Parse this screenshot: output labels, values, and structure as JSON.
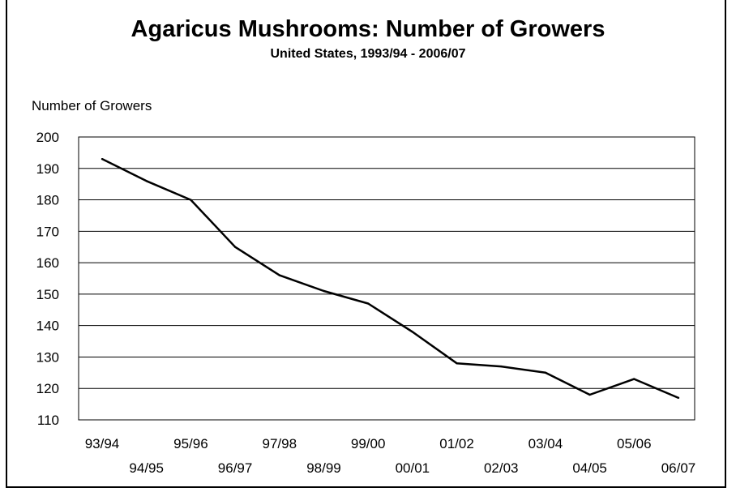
{
  "chart_data": {
    "type": "line",
    "title": "Agaricus Mushrooms:  Number of Growers",
    "subtitle": "United States, 1993/94 - 2006/07",
    "ylabel": "Number of Growers",
    "xlabel": "",
    "ylim": [
      110,
      200
    ],
    "yticks": [
      110,
      120,
      130,
      140,
      150,
      160,
      170,
      180,
      190,
      200
    ],
    "grid": true,
    "categories": [
      "93/94",
      "94/95",
      "95/96",
      "96/97",
      "97/98",
      "98/99",
      "99/00",
      "00/01",
      "01/02",
      "02/03",
      "03/04",
      "04/05",
      "05/06",
      "06/07"
    ],
    "series": [
      {
        "values": [
          193,
          186,
          180,
          165,
          156,
          151,
          147,
          138,
          128,
          127,
          125,
          118,
          123,
          117
        ]
      }
    ],
    "line_color": "#000000"
  }
}
